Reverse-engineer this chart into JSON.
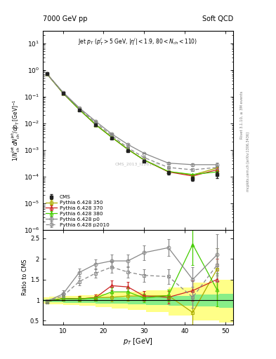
{
  "title_left": "7000 GeV pp",
  "title_right": "Soft QCD",
  "watermark": "CMS_2013_I1261026",
  "right_label": "Rivet 3.1.10, ≥ 3M events",
  "right_label2": "mcplots.cern.ch [arXiv:1306.3436]",
  "cms_x": [
    6,
    10,
    14,
    18,
    22,
    26,
    30,
    36,
    42,
    48
  ],
  "cms_y": [
    0.72,
    0.13,
    0.032,
    0.0085,
    0.0028,
    0.00095,
    0.00038,
    0.00014,
    8.5e-05,
    0.00012
  ],
  "cms_yerr": [
    0.04,
    0.008,
    0.002,
    0.0005,
    0.0002,
    7e-05,
    3e-05,
    2e-05,
    1.5e-05,
    3e-05
  ],
  "p350_x": [
    6,
    10,
    14,
    18,
    22,
    26,
    30,
    36,
    42,
    48
  ],
  "p350_y": [
    0.72,
    0.135,
    0.033,
    0.009,
    0.003,
    0.00105,
    0.00042,
    0.000155,
    0.000115,
    0.00021
  ],
  "p350_yerr": [
    0.03,
    0.006,
    0.0015,
    0.0004,
    0.00015,
    5e-05,
    2e-05,
    1.5e-05,
    1e-05,
    4e-05
  ],
  "p370_x": [
    6,
    10,
    14,
    18,
    22,
    26,
    30,
    36,
    42,
    48
  ],
  "p370_y": [
    0.72,
    0.135,
    0.033,
    0.009,
    0.003,
    0.00105,
    0.00042,
    0.00015,
    0.000105,
    0.00018
  ],
  "p370_yerr": [
    0.03,
    0.006,
    0.0015,
    0.0004,
    0.00015,
    5e-05,
    2e-05,
    1.5e-05,
    1e-05,
    4e-05
  ],
  "p380_x": [
    6,
    10,
    14,
    18,
    22,
    26,
    30,
    36,
    42,
    48
  ],
  "p380_y": [
    0.72,
    0.135,
    0.033,
    0.009,
    0.003,
    0.00105,
    0.00042,
    0.000155,
    0.00012,
    0.00015
  ],
  "p380_yerr": [
    0.03,
    0.006,
    0.0015,
    0.0004,
    0.00015,
    5e-05,
    2e-05,
    1.5e-05,
    1e-05,
    3e-05
  ],
  "p0_x": [
    6,
    10,
    14,
    18,
    22,
    26,
    30,
    36,
    42,
    48
  ],
  "p0_y": [
    0.72,
    0.145,
    0.038,
    0.012,
    0.004,
    0.0016,
    0.00075,
    0.00032,
    0.00028,
    0.00028
  ],
  "p0_yerr": [
    0.03,
    0.007,
    0.002,
    0.0006,
    0.0002,
    8e-05,
    4e-05,
    3e-05,
    3e-05,
    5e-05
  ],
  "p2010_x": [
    6,
    10,
    14,
    18,
    22,
    26,
    30,
    36,
    42,
    48
  ],
  "p2010_y": [
    0.72,
    0.14,
    0.036,
    0.0105,
    0.0035,
    0.0012,
    0.00052,
    0.00022,
    0.00018,
    0.00022
  ],
  "p2010_yerr": [
    0.03,
    0.007,
    0.0018,
    0.0005,
    0.00018,
    6e-05,
    3e-05,
    2e-05,
    2e-05,
    4e-05
  ],
  "ratio_p350_x": [
    6,
    10,
    14,
    18,
    22,
    26,
    30,
    36,
    42,
    48
  ],
  "ratio_p350_y": [
    0.97,
    1.04,
    1.03,
    1.06,
    1.07,
    1.1,
    1.1,
    1.11,
    0.7,
    1.75
  ],
  "ratio_p350_yerr": [
    0.05,
    0.06,
    0.07,
    0.07,
    0.1,
    0.12,
    0.12,
    0.15,
    0.3,
    0.5
  ],
  "ratio_p370_x": [
    6,
    10,
    14,
    18,
    22,
    26,
    30,
    36,
    42,
    48
  ],
  "ratio_p370_y": [
    0.97,
    1.04,
    1.03,
    1.06,
    1.35,
    1.32,
    1.1,
    1.07,
    1.23,
    1.5
  ],
  "ratio_p370_yerr": [
    0.05,
    0.06,
    0.07,
    0.07,
    0.12,
    0.12,
    0.12,
    0.15,
    0.25,
    0.5
  ],
  "ratio_p380_x": [
    6,
    10,
    14,
    18,
    22,
    26,
    30,
    36,
    42,
    48
  ],
  "ratio_p380_y": [
    0.97,
    1.04,
    1.03,
    1.05,
    1.2,
    1.2,
    1.05,
    1.11,
    2.35,
    1.25
  ],
  "ratio_p380_yerr": [
    0.05,
    0.06,
    0.06,
    0.06,
    0.1,
    0.1,
    0.1,
    0.15,
    0.5,
    0.4
  ],
  "ratio_p0_x": [
    6,
    10,
    14,
    18,
    22,
    26,
    30,
    36,
    42,
    48
  ],
  "ratio_p0_y": [
    0.97,
    1.15,
    1.67,
    1.87,
    1.95,
    1.95,
    2.15,
    2.27,
    1.5,
    2.1
  ],
  "ratio_p0_yerr": [
    0.05,
    0.08,
    0.1,
    0.12,
    0.15,
    0.15,
    0.18,
    0.2,
    0.3,
    0.5
  ],
  "ratio_p2010_x": [
    6,
    10,
    14,
    18,
    22,
    26,
    30,
    36,
    42,
    48
  ],
  "ratio_p2010_y": [
    0.97,
    1.1,
    1.45,
    1.65,
    1.8,
    1.68,
    1.6,
    1.57,
    1.07,
    1.85
  ],
  "ratio_p2010_yerr": [
    0.05,
    0.07,
    0.09,
    0.11,
    0.13,
    0.13,
    0.15,
    0.18,
    0.25,
    0.4
  ],
  "band_yellow_x": [
    5,
    8,
    12,
    16,
    20,
    24,
    28,
    33,
    39,
    45,
    52
  ],
  "band_yellow_lo": [
    0.92,
    0.9,
    0.88,
    0.86,
    0.83,
    0.8,
    0.77,
    0.72,
    0.62,
    0.5,
    0.45
  ],
  "band_yellow_hi": [
    1.06,
    1.08,
    1.1,
    1.12,
    1.15,
    1.18,
    1.2,
    1.23,
    1.3,
    1.42,
    1.5
  ],
  "band_green_x": [
    5,
    8,
    12,
    16,
    20,
    24,
    28,
    33,
    39,
    45,
    52
  ],
  "band_green_lo": [
    0.96,
    0.95,
    0.94,
    0.93,
    0.92,
    0.91,
    0.9,
    0.89,
    0.87,
    0.84,
    0.82
  ],
  "band_green_hi": [
    1.02,
    1.03,
    1.04,
    1.05,
    1.06,
    1.07,
    1.08,
    1.09,
    1.11,
    1.13,
    1.15
  ],
  "color_cms": "#222222",
  "color_p350": "#aaaa00",
  "color_p370": "#cc2222",
  "color_p380": "#44cc00",
  "color_p0": "#888888",
  "color_p2010": "#888888",
  "color_yellow": "#ffff88",
  "color_green": "#88ee88",
  "xlim": [
    5,
    52
  ],
  "ylim_top_lo": 1e-06,
  "ylim_top_hi": 30,
  "ylim_bottom_lo": 0.4,
  "ylim_bottom_hi": 2.7
}
